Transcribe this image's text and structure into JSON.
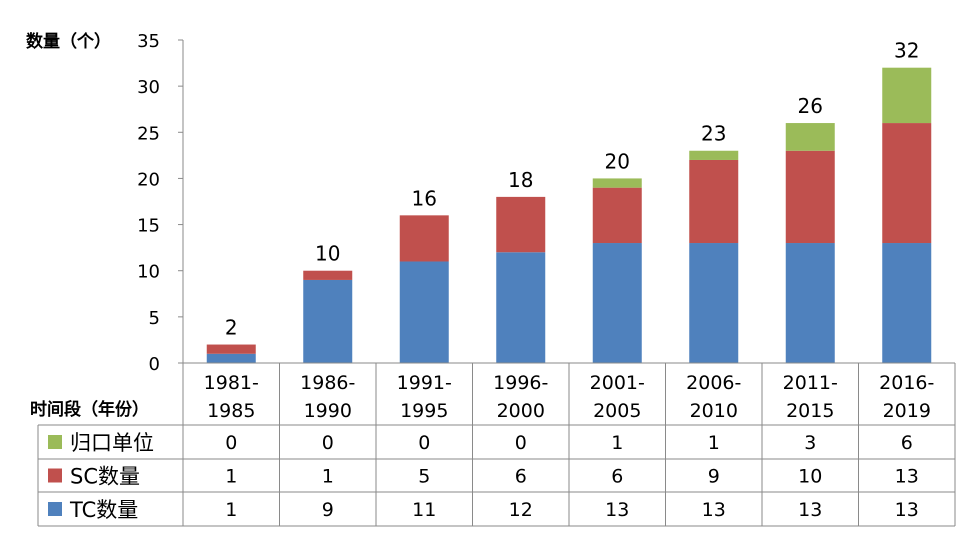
{
  "chart_data": {
    "type": "bar",
    "stacked": true,
    "ylabel": "数量（个）",
    "xlabel": "时间段（年份）",
    "ylim": [
      0,
      35
    ],
    "yticks": [
      0,
      5,
      10,
      15,
      20,
      25,
      30,
      35
    ],
    "grid": false,
    "legend": "data-table",
    "categories": [
      [
        "1981-",
        "1985"
      ],
      [
        "1986-",
        "1990"
      ],
      [
        "1991-",
        "1995"
      ],
      [
        "1996-",
        "2000"
      ],
      [
        "2001-",
        "2005"
      ],
      [
        "2006-",
        "2010"
      ],
      [
        "2011-",
        "2015"
      ],
      [
        "2016-",
        "2019"
      ]
    ],
    "series": [
      {
        "name": "TC数量",
        "color": "#4F81BD",
        "values": [
          1,
          9,
          11,
          12,
          13,
          13,
          13,
          13
        ]
      },
      {
        "name": "SC数量",
        "color": "#C0504D",
        "values": [
          1,
          1,
          5,
          6,
          6,
          9,
          10,
          13
        ]
      },
      {
        "name": "归口单位",
        "color": "#9BBB59",
        "values": [
          0,
          0,
          0,
          0,
          1,
          1,
          3,
          6
        ]
      }
    ],
    "totals": [
      2,
      10,
      16,
      18,
      20,
      23,
      26,
      32
    ],
    "table_row_order": [
      "归口单位",
      "SC数量",
      "TC数量"
    ]
  }
}
